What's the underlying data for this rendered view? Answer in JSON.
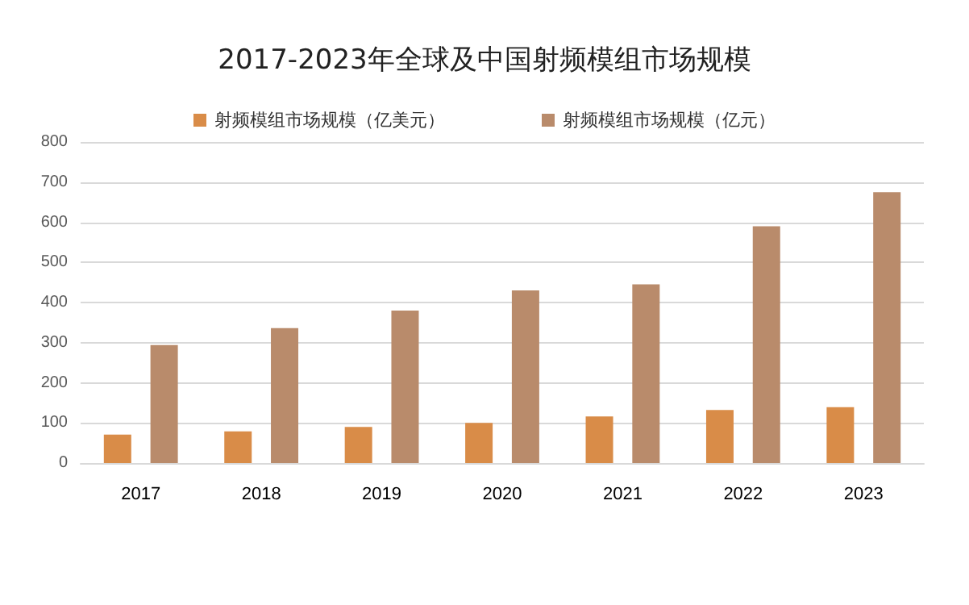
{
  "chart_data": {
    "type": "bar",
    "title": "2017-2023年全球及中国射频模组市场规模",
    "categories": [
      "2017",
      "2018",
      "2019",
      "2020",
      "2021",
      "2022",
      "2023"
    ],
    "series": [
      {
        "name": "射频模组市场规模（亿美元）",
        "color": "#d98c48",
        "values": [
          71,
          79,
          90,
          100,
          116,
          132,
          139
        ]
      },
      {
        "name": "射频模组市场规模（亿元）",
        "color": "#b98b6b",
        "values": [
          294,
          336,
          380,
          430,
          445,
          590,
          675
        ]
      }
    ],
    "ylim": [
      0,
      800
    ],
    "yticks": [
      0,
      100,
      200,
      300,
      400,
      500,
      600,
      700,
      800
    ],
    "grid": "y",
    "legend": "top"
  }
}
